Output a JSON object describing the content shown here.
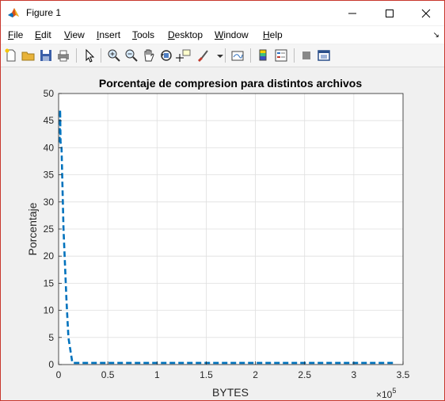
{
  "window": {
    "title": "Figure 1"
  },
  "menu": {
    "items": [
      "File",
      "Edit",
      "View",
      "Insert",
      "Tools",
      "Desktop",
      "Window",
      "Help"
    ],
    "overflow_icon": "dock-arrow-icon"
  },
  "toolbar": {
    "icons": [
      "new-figure-icon",
      "open-file-icon",
      "save-icon",
      "print-icon",
      "pointer-icon",
      "zoom-in-icon",
      "zoom-out-icon",
      "pan-icon",
      "rotate-3d-icon",
      "data-cursor-icon",
      "brush-icon",
      "link-plot-icon",
      "colorbar-icon",
      "legend-icon",
      "hide-plot-tools-icon",
      "show-plot-tools-icon"
    ]
  },
  "colors": {
    "line": "#0072bd",
    "grid": "#dfdfdf",
    "window_border": "#c8372d"
  },
  "chart_data": {
    "type": "line",
    "title": "Porcentaje de compresion para distintos archivos",
    "xlabel": "BYTES",
    "ylabel": "Porcentaje",
    "x_exponent_label": "×10",
    "x_exponent": "5",
    "xlim": [
      0,
      3.5
    ],
    "ylim": [
      0,
      50
    ],
    "x_scale_factor": 100000,
    "xticks": [
      "0",
      "0.5",
      "1",
      "1.5",
      "2",
      "2.5",
      "3",
      "3.5"
    ],
    "yticks": [
      "0",
      "5",
      "10",
      "15",
      "20",
      "25",
      "30",
      "35",
      "40",
      "45",
      "50"
    ],
    "grid": true,
    "series": [
      {
        "line_style": "dashed",
        "x": [
          0.01,
          0.015,
          0.02,
          0.03,
          0.05,
          0.08,
          0.1,
          0.14,
          0.5,
          1,
          2,
          3,
          3.4
        ],
        "y": [
          41,
          47,
          41,
          40,
          25,
          12,
          5,
          0.3,
          0.3,
          0.3,
          0.3,
          0.3,
          0.3
        ]
      }
    ]
  }
}
